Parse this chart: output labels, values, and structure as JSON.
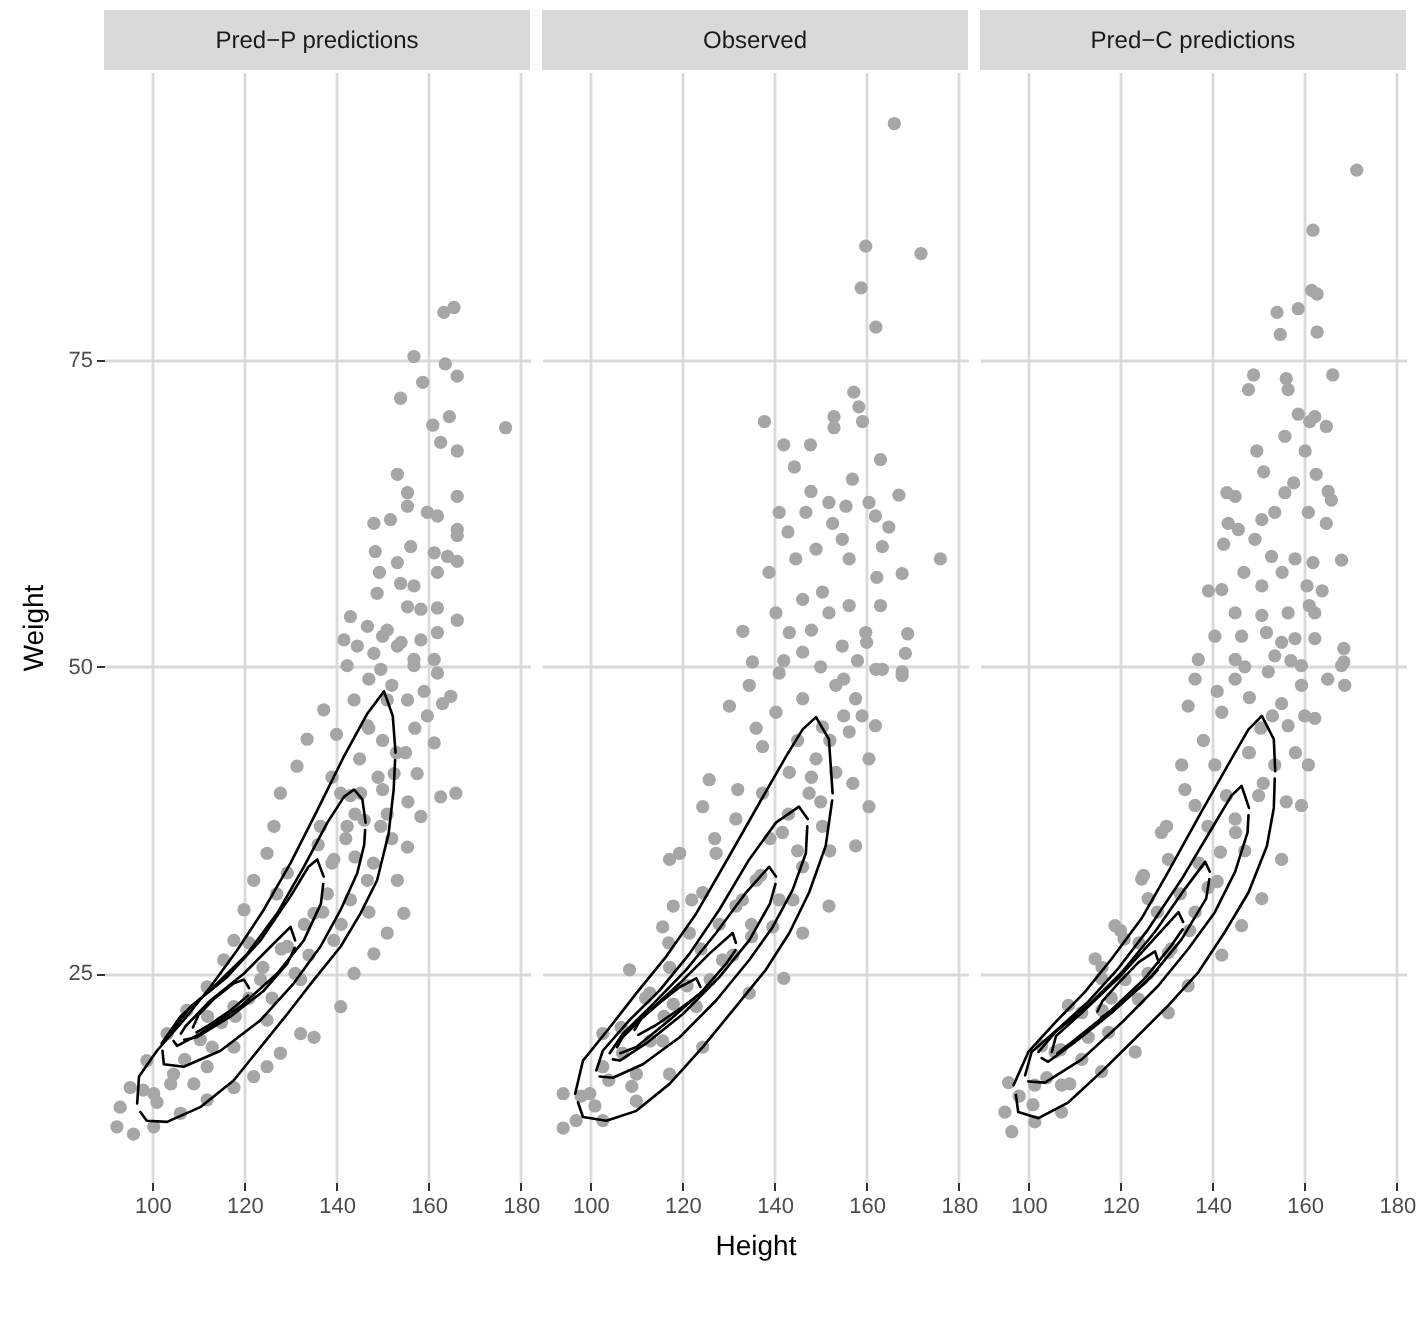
{
  "chart_data": [
    {
      "type": "scatter",
      "title": "Pred−P predictions",
      "ylabel": "Weight",
      "xlim": [
        89.5,
        182
      ],
      "ylim": [
        8,
        98.5
      ],
      "xticks": [
        100,
        120,
        140,
        160,
        180
      ],
      "yticks": [
        25,
        50,
        75
      ],
      "grid": true,
      "series": [
        {
          "marker": "circle",
          "color": "#a6a6a6",
          "x": [
            163.3,
            165.5,
            156.8,
            163.6,
            166.2,
            158.7,
            153.9,
            160.9,
            164.5,
            176.7,
            162.6,
            166.2,
            153.2,
            155.4,
            155.4,
            166.2,
            148.1,
            151.7,
            159.7,
            161.9,
            166.2,
            166.2,
            148.4,
            156.1,
            161.2,
            164.1,
            166.2,
            153.2,
            149.3,
            153.9,
            156.8,
            161.9,
            148.8,
            155.4,
            158.3,
            161.9,
            166.2,
            143.0,
            146.7,
            151.0,
            144.5,
            148.1,
            153.2,
            158.3,
            161.9,
            141.6,
            156.8,
            161.2,
            142.3,
            149.6,
            156.8,
            161.9,
            164.8,
            159.7,
            155.4,
            137.2,
            133.6,
            131.4,
            161.2,
            157.5,
            162.6,
            165.9,
            158.3,
            127.8,
            126.4,
            124.9,
            122.0,
            119.9,
            155.4,
            153.2,
            154.6,
            151.0,
            148.1,
            117.7,
            115.5,
            143.8,
            140.9,
            135.1,
            111.9,
            107.5,
            132.2,
            127.8,
            124.9,
            122.0,
            103.2,
            98.8,
            95.2,
            93.0,
            92.3,
            95.9,
            100.3,
            106.1,
            111.9,
            117.7,
            146.7,
            145.2,
            149.6,
            139.4,
            146.7,
            135.1,
            129.3,
            139.4,
            123.5,
            132.2,
            117.7,
            124.9,
            110.4,
            117.7,
            104.6,
            111.9,
            100.3,
            152.5,
            140.9,
            136.5,
            129.3,
            142.3,
            151.0,
            143.8,
            150.0,
            155.0,
            145.0,
            150.0,
            155.5,
            140.0,
            147.0,
            152.0,
            144.0,
            152.0,
            148.0,
            143.0,
            138.0,
            147.0,
            98,
            101,
            104,
            107,
            109,
            113,
            115,
            118,
            121,
            124,
            126,
            128,
            131,
            133,
            134,
            137,
            139,
            141,
            142,
            144,
            146,
            149,
            151,
            153,
            157,
            159,
            154,
            150,
            163,
            139,
            136,
            147,
            143,
            127,
            121,
            112
          ],
          "values": [
            78.9,
            79.3,
            75.3,
            74.7,
            73.7,
            73.2,
            71.9,
            69.7,
            70.4,
            69.5,
            68.3,
            67.6,
            65.7,
            64.2,
            63.1,
            63.9,
            61.7,
            62.0,
            62.6,
            62.3,
            61.2,
            60.7,
            59.4,
            59.8,
            59.3,
            59.0,
            58.6,
            58.5,
            57.7,
            56.8,
            56.6,
            57.7,
            56.0,
            54.9,
            54.7,
            54.8,
            53.8,
            54.1,
            53.3,
            53.0,
            51.7,
            51.1,
            51.7,
            52.2,
            52.8,
            52.2,
            50.6,
            50.6,
            50.1,
            49.8,
            50.1,
            49.5,
            47.6,
            46.0,
            47.3,
            46.5,
            44.1,
            41.9,
            43.8,
            41.3,
            39.4,
            39.7,
            37.8,
            39.7,
            37.0,
            34.8,
            32.6,
            30.2,
            35.3,
            32.6,
            29.9,
            28.3,
            26.6,
            27.7,
            26.1,
            25.0,
            22.3,
            19.8,
            23.9,
            22.0,
            20.1,
            18.5,
            17.4,
            16.6,
            20.1,
            17.9,
            15.7,
            14.1,
            12.5,
            11.9,
            12.5,
            13.6,
            14.7,
            15.7,
            45.2,
            39.7,
            37.0,
            34.3,
            32.6,
            29.9,
            27.2,
            27.7,
            24.5,
            24.5,
            22.3,
            21.2,
            19.6,
            19.0,
            16.8,
            17.4,
            15.2,
            41.3,
            39.7,
            37.0,
            33.2,
            37.0,
            47.3,
            47.3,
            44.0,
            43.0,
            42.5,
            40.0,
            39.0,
            44.5,
            49.0,
            48.5,
            38.0,
            36.0,
            34.0,
            31.0,
            31.5,
            30.0,
            15.5,
            14.5,
            16,
            18,
            16,
            19,
            21,
            21.5,
            23,
            25.5,
            23,
            27,
            25,
            29,
            26.5,
            30,
            34,
            29,
            36,
            34.5,
            37.5,
            41,
            38,
            43,
            45,
            48,
            52,
            52.5,
            47,
            41,
            35.5,
            45,
            39.5,
            31.5,
            27.5,
            21.5
          ]
        },
        {
          "type": "line",
          "color": "#000000",
          "x": [
            96.7,
            97.1,
            101.0,
            106.8,
            112.6,
            118.4,
            124.2,
            130.0,
            135.8,
            141.6,
            146.7,
            150.3,
            152.2,
            152.8
          ],
          "values": [
            14.4,
            16.6,
            18.7,
            21.2,
            23.9,
            26.9,
            30.2,
            34.0,
            38.3,
            42.7,
            46.2,
            48.0,
            46.0,
            43.0
          ]
        },
        {
          "type": "line",
          "color": "#000000",
          "x": [
            97.4,
            98.8,
            103.2,
            110.4,
            117.7,
            123.5,
            129.3,
            135.1,
            140.9,
            145.2,
            148.8,
            151.3,
            152.4,
            152.7
          ],
          "values": [
            13.7,
            13.0,
            12.9,
            14.1,
            16.3,
            19.0,
            21.7,
            24.5,
            27.2,
            29.9,
            32.6,
            36.4,
            40.0,
            42.4
          ]
        },
        {
          "type": "line",
          "color": "#000000",
          "x": [
            102.0,
            106.1,
            113.3,
            120.6,
            127.1,
            132.9,
            138.0,
            141.6,
            143.8,
            145.6,
            146.3
          ],
          "values": [
            19.3,
            21.5,
            23.9,
            26.6,
            29.9,
            33.7,
            37.3,
            39.4,
            40.0,
            39.2,
            37.3
          ]
        },
        {
          "type": "line",
          "color": "#000000",
          "x": [
            102.2,
            102.5,
            106.8,
            114.8,
            123.5,
            130.7,
            136.5,
            140.9,
            144.5,
            146.0,
            146.2
          ],
          "values": [
            18.7,
            17.6,
            17.4,
            18.7,
            21.2,
            24.2,
            27.2,
            30.2,
            33.2,
            35.5,
            36.7
          ]
        },
        {
          "type": "line",
          "color": "#000000",
          "x": [
            103.9,
            108.3,
            116.2,
            123.5,
            130.0,
            133.9,
            135.8,
            137.2
          ],
          "values": [
            20.1,
            22.3,
            24.7,
            27.7,
            31.3,
            33.7,
            34.3,
            32.9
          ]
        },
        {
          "type": "line",
          "color": "#000000",
          "x": [
            104.6,
            105.4,
            110.4,
            119.1,
            127.1,
            132.9,
            136.6,
            137.1
          ],
          "values": [
            19.5,
            19.1,
            20.1,
            22.3,
            25.0,
            27.7,
            30.7,
            32.3
          ]
        },
        {
          "type": "line",
          "color": "#000000",
          "x": [
            106.2,
            107.2,
            112.6,
            119.9,
            125.7,
            130.0,
            131.0
          ],
          "values": [
            20.1,
            20.7,
            22.8,
            25.0,
            27.2,
            28.8,
            27.7
          ]
        },
        {
          "type": "line",
          "color": "#000000",
          "x": [
            106.9,
            109.7,
            117.0,
            124.2,
            129.3,
            130.9
          ],
          "values": [
            19.6,
            19.8,
            21.5,
            23.6,
            25.8,
            27.1
          ]
        },
        {
          "type": "line",
          "color": "#000000",
          "x": [
            108.8,
            110.0,
            113.3,
            117.7,
            119.9,
            121.0
          ],
          "values": [
            20.6,
            21.6,
            22.9,
            24.2,
            24.5,
            23.8
          ]
        },
        {
          "type": "line",
          "color": "#000000",
          "x": [
            109.6,
            111.9,
            117.0,
            120.8
          ],
          "values": [
            20.2,
            20.7,
            22.0,
            23.2
          ]
        }
      ]
    },
    {
      "type": "scatter",
      "title": "Observed",
      "xlabel": "Height",
      "xlim": [
        89.5,
        182
      ],
      "ylim": [
        8,
        98.5
      ],
      "xticks": [
        100,
        120,
        140,
        160,
        180
      ],
      "yticks": [
        25,
        50,
        75
      ],
      "grid": true,
      "tick_labels": "x",
      "series": [
        {
          "marker": "circle",
          "color": "#a6a6a6",
          "x": [
            166.0,
            159.8,
            171.8,
            158.8,
            162.0,
            157.2,
            158.3,
            159.1,
            137.8,
            152.9,
            152.9,
            142.0,
            147.8,
            144.3,
            163.0,
            156.9,
            167.0,
            147.9,
            151.8,
            155.5,
            160.5,
            161.9,
            141.0,
            142.9,
            146.8,
            152.6,
            154.7,
            164.8,
            163.4,
            176.0,
            144.6,
            149.0,
            156.2,
            138.8,
            162.2,
            167.7,
            140.3,
            146.1,
            150.4,
            156.2,
            133.1,
            143.2,
            151.8,
            159.8,
            168.9,
            135.2,
            146.1,
            154.7,
            162.0,
            167.7,
            168.4,
            130.2,
            134.5,
            125.8,
            119.4,
            117.2,
            115.7,
            108.5,
            102.7,
            94.1,
            94.1,
            96.9,
            163.4,
            167.7,
            161.9,
            160.5,
            160.5,
            157.6,
            151.8,
            146.1,
            142.0,
            134.5,
            124.4,
            117.2,
            110.0,
            102.7,
            153.3,
            146.1,
            140.3,
            156.2,
            153.3,
            143.2,
            137.4,
            147.5,
            131.6,
            141.7,
            150.4,
            127.3,
            136.0,
            146.1,
            124.4,
            131.6,
            121.5,
            139.6,
            117.2,
            128.7,
            112.9,
            123.0,
            106.7,
            115.7,
            102.7,
            110.0,
            99.9,
            157.6,
            150.4,
            137.4,
            124.4,
            158.0,
            150.0,
            141.0,
            155.0,
            145.0,
            149.0,
            157.0,
            152.0,
            144.0,
            135.0,
            98,
            101,
            104,
            107,
            109,
            113,
            116,
            118,
            121,
            124,
            126,
            128,
            131,
            133,
            135,
            137,
            139,
            141,
            143,
            145,
            148,
            150,
            152,
            155,
            159,
            160,
            163,
            148,
            142,
            136,
            132,
            127,
            122,
            117,
            112,
            118
          ],
          "values": [
            94.3,
            84.3,
            83.7,
            80.9,
            77.7,
            72.4,
            71.2,
            70.0,
            70.0,
            70.4,
            69.5,
            68.1,
            68.1,
            66.3,
            66.9,
            65.3,
            64.0,
            64.3,
            63.4,
            63.1,
            63.4,
            62.3,
            62.6,
            61.0,
            62.6,
            61.7,
            60.4,
            61.4,
            59.8,
            58.8,
            58.8,
            59.6,
            58.8,
            57.7,
            57.3,
            57.6,
            54.4,
            55.5,
            56.1,
            55.0,
            52.9,
            52.8,
            54.4,
            52.8,
            52.7,
            50.4,
            51.2,
            51.7,
            49.8,
            49.6,
            51.1,
            46.8,
            48.5,
            40.8,
            34.8,
            34.3,
            28.8,
            25.3,
            20.1,
            15.2,
            12.4,
            13.0,
            49.8,
            49.3,
            45.2,
            42.5,
            38.6,
            35.4,
            30.5,
            28.3,
            24.6,
            23.4,
            19.0,
            16.8,
            14.6,
            13.0,
            48.5,
            47.4,
            46.3,
            44.7,
            41.4,
            41.4,
            39.7,
            39.7,
            37.6,
            36.5,
            37.0,
            34.8,
            32.6,
            33.7,
            31.6,
            30.5,
            28.3,
            28.8,
            25.5,
            26.1,
            23.4,
            22.3,
            20.6,
            19.5,
            17.4,
            16.8,
            15.2,
            47.4,
            45.1,
            43.5,
            38.6,
            50.5,
            50.0,
            49.5,
            46.0,
            44.0,
            42.5,
            40.5,
            35.0,
            31.0,
            29.0,
            15,
            14.2,
            16.3,
            18.5,
            15.8,
            19.5,
            21.5,
            22.5,
            24,
            27,
            24.5,
            29,
            26.5,
            31,
            28,
            33,
            36,
            31,
            38,
            35,
            41,
            39,
            44,
            49,
            46,
            52,
            55,
            53,
            50.5,
            45,
            40,
            36,
            31,
            27.5,
            23,
            30.5
          ]
        },
        {
          "type": "line",
          "color": "#000000",
          "x": [
            96.7,
            98.4,
            104.2,
            110.0,
            116.5,
            123.0,
            130.2,
            136.7,
            142.5,
            146.1,
            149.0,
            151.8,
            152.6
          ],
          "values": [
            15.2,
            17.9,
            20.6,
            23.4,
            26.4,
            29.9,
            34.6,
            38.9,
            42.7,
            44.9,
            45.9,
            44.1,
            39.7
          ]
        },
        {
          "type": "line",
          "color": "#000000",
          "x": [
            97.3,
            98.4,
            103.5,
            110.0,
            117.2,
            124.4,
            131.6,
            138.1,
            143.2,
            147.5,
            151.1,
            152.5
          ],
          "values": [
            14.5,
            13.3,
            13.0,
            13.8,
            16.0,
            19.0,
            22.3,
            25.3,
            28.3,
            31.6,
            35.4,
            39.1
          ]
        },
        {
          "type": "line",
          "color": "#000000",
          "x": [
            101.3,
            102.7,
            108.5,
            115.0,
            121.5,
            128.0,
            134.5,
            140.3,
            145.3,
            147.2
          ],
          "values": [
            17.1,
            18.7,
            21.2,
            23.6,
            26.6,
            30.2,
            34.3,
            37.3,
            38.6,
            37.6
          ]
        },
        {
          "type": "line",
          "color": "#000000",
          "x": [
            102.0,
            104.9,
            111.4,
            119.4,
            127.3,
            134.5,
            139.6,
            143.9,
            146.8,
            147.1
          ],
          "values": [
            16.6,
            16.5,
            17.6,
            19.8,
            22.8,
            26.1,
            28.8,
            31.8,
            34.8,
            37.0
          ]
        },
        {
          "type": "line",
          "color": "#000000",
          "x": [
            104.2,
            107.1,
            113.6,
            120.8,
            127.3,
            133.8,
            138.8,
            140.3
          ],
          "values": [
            18.5,
            20.1,
            22.5,
            25.3,
            28.3,
            31.6,
            33.7,
            32.9
          ]
        },
        {
          "type": "line",
          "color": "#000000",
          "x": [
            104.9,
            106.4,
            112.1,
            120.1,
            128.0,
            134.5,
            139.0,
            140.2
          ],
          "values": [
            18.0,
            17.9,
            19.3,
            21.7,
            24.7,
            27.7,
            30.7,
            32.3
          ]
        },
        {
          "type": "line",
          "color": "#000000",
          "x": [
            105.8,
            107.0,
            112.1,
            119.4,
            125.8,
            130.9,
            131.6
          ],
          "values": [
            19.0,
            19.8,
            21.7,
            24.2,
            26.6,
            28.3,
            27.5
          ]
        },
        {
          "type": "line",
          "color": "#000000",
          "x": [
            106.5,
            110.0,
            117.2,
            124.4,
            129.5,
            131.5
          ],
          "values": [
            18.5,
            19.0,
            21.2,
            23.6,
            25.8,
            26.9
          ]
        },
        {
          "type": "line",
          "color": "#000000",
          "x": [
            109.6,
            111.0,
            115.0,
            119.4,
            123.0,
            123.9
          ],
          "values": [
            20.4,
            21.3,
            22.6,
            23.9,
            24.6,
            23.9
          ]
        },
        {
          "type": "line",
          "color": "#000000",
          "x": [
            110.4,
            114.3,
            120.1,
            123.7
          ],
          "values": [
            20.0,
            20.8,
            22.3,
            23.3
          ]
        }
      ]
    },
    {
      "type": "scatter",
      "title": "Pred−C predictions",
      "xlim": [
        89.5,
        182
      ],
      "ylim": [
        8,
        98.5
      ],
      "xticks": [
        100,
        120,
        140,
        160,
        180
      ],
      "yticks": [
        25,
        50,
        75
      ],
      "grid": true,
      "tick_labels": "x",
      "series": [
        {
          "marker": "circle",
          "color": "#a6a6a6",
          "x": [
            171.3,
            161.8,
            161.5,
            162.7,
            158.6,
            154.0,
            154.7,
            162.7,
            166.1,
            148.9,
            147.8,
            156.0,
            156.4,
            158.6,
            162.2,
            161.1,
            164.7,
            155.7,
            149.6,
            160.1,
            151.1,
            162.5,
            157.6,
            143.1,
            144.9,
            165.1,
            165.8,
            155.7,
            153.5,
            160.8,
            143.4,
            145.6,
            150.7,
            149.2,
            164.7,
            142.4,
            152.8,
            157.9,
            161.8,
            168.0,
            146.8,
            150.7,
            155.1,
            160.5,
            163.8,
            139.1,
            142.0,
            144.9,
            150.7,
            156.4,
            162.2,
            140.5,
            146.3,
            151.7,
            157.9,
            162.2,
            136.9,
            144.9,
            153.5,
            168.5,
            168.5,
            159.3,
            136.2,
            134.7,
            133.3,
            128.9,
            124.6,
            118.8,
            114.5,
            108.7,
            102.9,
            95.7,
            94.9,
            96.4,
            168.0,
            168.7,
            162.2,
            160.8,
            159.3,
            155.0,
            150.7,
            146.3,
            142.0,
            134.7,
            130.4,
            123.2,
            115.9,
            107.2,
            101.4,
            144.9,
            152.1,
            159.3,
            142.0,
            156.4,
            147.8,
            140.5,
            153.5,
            136.2,
            144.9,
            130.4,
            141.7,
            126.0,
            136.2,
            120.8,
            130.4,
            115.9,
            123.9,
            111.6,
            117.4,
            105.8,
            111.6,
            101.4,
            107.2,
            148.0,
            155.0,
            150.5,
            158.0,
            150.0,
            156.0,
            147.0,
            139.0,
            98,
            101,
            104,
            107,
            109,
            113,
            116,
            118,
            121,
            124,
            126,
            128,
            131,
            133,
            135,
            137,
            139,
            141,
            143,
            145,
            148,
            151,
            153,
            157,
            160,
            165,
            161,
            155,
            147,
            141,
            138,
            134,
            130,
            125,
            120,
            116
          ],
          "values": [
            90.5,
            85.6,
            80.7,
            80.4,
            79.2,
            78.9,
            77.1,
            77.3,
            73.8,
            73.8,
            72.6,
            73.5,
            72.6,
            70.6,
            70.4,
            70.0,
            69.6,
            68.8,
            67.6,
            67.6,
            65.9,
            65.7,
            65.0,
            64.2,
            63.9,
            64.3,
            63.6,
            64.2,
            62.6,
            62.6,
            61.7,
            61.2,
            62.0,
            60.4,
            61.7,
            60.0,
            59.0,
            58.8,
            58.5,
            58.7,
            57.7,
            56.6,
            57.7,
            56.6,
            56.2,
            56.2,
            56.3,
            54.4,
            54.2,
            54.4,
            54.4,
            52.5,
            52.5,
            52.8,
            52.3,
            52.3,
            50.6,
            50.6,
            50.9,
            51.5,
            50.4,
            50.1,
            49.0,
            46.8,
            42.0,
            36.5,
            32.7,
            28.9,
            26.2,
            22.4,
            19.1,
            16.1,
            13.7,
            12.1,
            50.1,
            48.5,
            45.8,
            42.0,
            38.7,
            34.3,
            31.1,
            28.9,
            26.5,
            24.0,
            21.8,
            18.6,
            17.0,
            13.7,
            12.9,
            49.0,
            49.6,
            48.5,
            46.3,
            45.2,
            43.0,
            42.0,
            42.0,
            38.7,
            37.6,
            34.3,
            34.9,
            31.1,
            30.0,
            27.8,
            26.7,
            24.6,
            22.9,
            21.8,
            20.2,
            18.6,
            18.0,
            15.9,
            15.9,
            47.5,
            47.0,
            45.0,
            43.0,
            39.5,
            39.0,
            35.0,
            32.0,
            15,
            14.3,
            16.5,
            18.8,
            16,
            19.8,
            22,
            23,
            24.5,
            27.5,
            25,
            30,
            27,
            31.5,
            28.5,
            34,
            37,
            32.5,
            39.5,
            36.5,
            43,
            40.5,
            46,
            50.5,
            46,
            49,
            55,
            52,
            50,
            48,
            44,
            40,
            37,
            33,
            28.5,
            25.5
          ]
        },
        {
          "type": "line",
          "color": "#000000",
          "x": [
            96.8,
            100.0,
            105.8,
            112.3,
            118.1,
            124.6,
            130.4,
            137.6,
            144.1,
            147.8,
            150.7,
            153.3,
            153.6
          ],
          "values": [
            15.9,
            18.6,
            21.0,
            23.5,
            26.2,
            29.5,
            33.3,
            38.2,
            42.5,
            44.9,
            46.0,
            44.1,
            41.5
          ]
        },
        {
          "type": "line",
          "color": "#000000",
          "x": [
            97.3,
            97.8,
            102.2,
            108.7,
            115.9,
            123.2,
            130.4,
            136.9,
            142.7,
            147.8,
            151.8,
            153.3,
            153.5
          ],
          "values": [
            15.1,
            13.7,
            13.2,
            14.5,
            17.0,
            19.7,
            22.4,
            25.1,
            28.4,
            31.6,
            35.4,
            38.5,
            40.9
          ]
        },
        {
          "type": "line",
          "color": "#000000",
          "x": [
            99.3,
            100.7,
            106.5,
            113.0,
            119.5,
            126.0,
            133.3,
            139.8,
            144.1,
            146.3,
            147.9
          ],
          "values": [
            16.7,
            18.6,
            20.5,
            22.7,
            25.4,
            28.6,
            32.7,
            36.8,
            39.5,
            40.3,
            38.5
          ]
        },
        {
          "type": "line",
          "color": "#000000",
          "x": [
            100.0,
            103.6,
            111.6,
            120.3,
            128.2,
            134.7,
            140.5,
            144.9,
            147.6,
            147.8
          ],
          "values": [
            16.2,
            16.1,
            18.0,
            21.0,
            24.0,
            27.0,
            30.0,
            33.3,
            36.5,
            37.9
          ]
        },
        {
          "type": "line",
          "color": "#000000",
          "x": [
            102.2,
            105.8,
            113.0,
            120.3,
            127.5,
            134.0,
            138.4,
            139.4
          ],
          "values": [
            18.6,
            20.2,
            22.4,
            25.1,
            28.4,
            31.9,
            34.1,
            33.3
          ]
        },
        {
          "type": "line",
          "color": "#000000",
          "x": [
            102.9,
            104.3,
            110.1,
            118.1,
            126.8,
            133.3,
            138.6,
            139.3
          ],
          "values": [
            18.1,
            17.8,
            19.4,
            21.8,
            24.8,
            27.8,
            31.1,
            32.7
          ]
        },
        {
          "type": "line",
          "color": "#000000",
          "x": [
            105.1,
            106.0,
            111.6,
            119.5,
            126.0,
            132.6,
            133.6
          ],
          "values": [
            18.6,
            19.9,
            21.8,
            24.6,
            27.3,
            30.0,
            29.2
          ]
        },
        {
          "type": "line",
          "color": "#000000",
          "x": [
            106.3,
            109.4,
            117.4,
            125.3,
            131.1,
            133.5
          ],
          "values": [
            18.5,
            19.4,
            21.8,
            24.6,
            27.3,
            28.6
          ]
        },
        {
          "type": "line",
          "color": "#000000",
          "x": [
            115.0,
            116.0,
            119.5,
            123.9,
            127.5,
            128.3
          ],
          "values": [
            21.9,
            22.7,
            24.2,
            25.9,
            26.8,
            25.9
          ]
        },
        {
          "type": "line",
          "color": "#000000",
          "x": [
            115.8,
            120.3,
            125.3,
            128.1
          ],
          "values": [
            21.4,
            22.6,
            24.2,
            25.3
          ]
        }
      ]
    }
  ]
}
